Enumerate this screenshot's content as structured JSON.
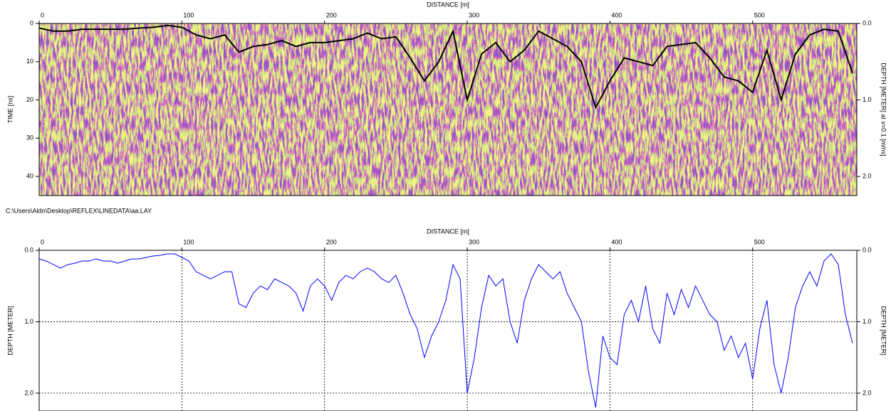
{
  "caption": "C:\\Users\\Aldo\\Desktop\\REFLEX\\LINEDATA\\aa.LAY",
  "chart_data": [
    {
      "type": "radargram",
      "x_label": "DISTANCE [m]",
      "y_label": "TIME [ns]",
      "y2_label": "DEPTH [METER] at v=0.1 [m/ns]",
      "xlim": [
        0,
        573
      ],
      "xticks": [
        0,
        100,
        200,
        300,
        400,
        500
      ],
      "ylim": [
        0,
        45
      ],
      "yticks": [
        0,
        10,
        20,
        30,
        40
      ],
      "y_inverted": true,
      "y2lim": [
        0,
        2.25
      ],
      "y2ticks": [
        {
          "value": 0,
          "label": "0.0"
        },
        {
          "value": 1,
          "label": "1.0"
        },
        {
          "value": 2,
          "label": "2.0"
        }
      ],
      "grid": false,
      "color": "#000000",
      "x": [
        0,
        10,
        20,
        30,
        40,
        50,
        60,
        70,
        80,
        90,
        100,
        110,
        120,
        130,
        140,
        150,
        160,
        170,
        180,
        190,
        200,
        210,
        220,
        230,
        240,
        250,
        260,
        270,
        280,
        290,
        300,
        310,
        320,
        330,
        340,
        350,
        360,
        370,
        380,
        390,
        400,
        410,
        420,
        430,
        440,
        450,
        460,
        470,
        480,
        490,
        500,
        510,
        520,
        530,
        540,
        550,
        560,
        570
      ],
      "values": [
        1.2,
        2,
        2,
        1.5,
        1.5,
        1.5,
        1.5,
        1.2,
        1,
        0.5,
        1,
        3,
        4,
        3,
        7.5,
        6,
        5.5,
        4.5,
        6,
        5,
        5,
        4.5,
        4,
        2.5,
        4,
        3.5,
        9,
        15,
        10,
        2,
        20,
        8,
        5,
        10,
        7,
        2,
        4,
        6,
        10,
        22,
        15,
        9,
        10,
        11,
        6,
        5.5,
        5,
        9,
        14,
        15,
        18,
        7,
        20,
        8,
        3,
        1.5,
        2,
        13
      ]
    },
    {
      "type": "line",
      "x_label": "DISTANCE [m]",
      "y_label": "DEPTH [METER]",
      "y2_label": "DEPTH [METER]",
      "xlim": [
        0,
        573
      ],
      "xticks": [
        0,
        100,
        200,
        300,
        400,
        500
      ],
      "ylim": [
        0,
        2.25
      ],
      "yticks": [
        {
          "value": 0,
          "label": "0.0"
        },
        {
          "value": 1,
          "label": "1.0"
        },
        {
          "value": 2,
          "label": "2.0"
        }
      ],
      "y_inverted": true,
      "y2lim": [
        0,
        2.25
      ],
      "y2ticks": [
        {
          "value": 0,
          "label": "0.0"
        },
        {
          "value": 1,
          "label": "1.0"
        },
        {
          "value": 2,
          "label": "2.0"
        }
      ],
      "grid": true,
      "color": "#0000ff",
      "x": [
        0,
        5,
        10,
        15,
        20,
        25,
        30,
        35,
        40,
        45,
        50,
        55,
        60,
        65,
        70,
        75,
        80,
        85,
        90,
        95,
        100,
        105,
        110,
        115,
        120,
        125,
        130,
        135,
        140,
        145,
        150,
        155,
        160,
        165,
        170,
        175,
        180,
        185,
        190,
        195,
        200,
        205,
        210,
        215,
        220,
        225,
        230,
        235,
        240,
        245,
        250,
        255,
        260,
        265,
        270,
        275,
        280,
        285,
        290,
        295,
        300,
        305,
        310,
        315,
        320,
        325,
        330,
        335,
        340,
        345,
        350,
        355,
        360,
        365,
        370,
        375,
        380,
        385,
        390,
        395,
        400,
        405,
        410,
        415,
        420,
        425,
        430,
        435,
        440,
        445,
        450,
        455,
        460,
        465,
        470,
        475,
        480,
        485,
        490,
        495,
        500,
        505,
        510,
        515,
        520,
        525,
        530,
        535,
        540,
        545,
        550,
        555,
        560,
        565,
        570
      ],
      "values": [
        0.12,
        0.15,
        0.2,
        0.25,
        0.2,
        0.18,
        0.15,
        0.15,
        0.12,
        0.15,
        0.15,
        0.18,
        0.15,
        0.12,
        0.12,
        0.1,
        0.08,
        0.07,
        0.05,
        0.05,
        0.1,
        0.15,
        0.3,
        0.35,
        0.4,
        0.35,
        0.3,
        0.3,
        0.75,
        0.8,
        0.6,
        0.5,
        0.55,
        0.4,
        0.45,
        0.5,
        0.6,
        0.85,
        0.5,
        0.4,
        0.5,
        0.7,
        0.45,
        0.35,
        0.4,
        0.3,
        0.25,
        0.3,
        0.4,
        0.45,
        0.35,
        0.6,
        0.9,
        1.1,
        1.5,
        1.2,
        1.0,
        0.7,
        0.2,
        0.4,
        2.0,
        1.5,
        0.8,
        0.35,
        0.5,
        0.4,
        1.0,
        1.3,
        0.7,
        0.4,
        0.2,
        0.3,
        0.4,
        0.3,
        0.6,
        0.8,
        1.0,
        1.7,
        2.2,
        1.2,
        1.5,
        1.6,
        0.9,
        0.7,
        1.0,
        0.5,
        1.1,
        1.3,
        0.6,
        0.9,
        0.55,
        0.8,
        0.5,
        0.7,
        0.9,
        1.0,
        1.4,
        1.2,
        1.5,
        1.3,
        1.8,
        1.1,
        0.7,
        1.6,
        2.0,
        1.5,
        0.8,
        0.5,
        0.3,
        0.5,
        0.15,
        0.05,
        0.2,
        0.9,
        1.3
      ]
    }
  ]
}
